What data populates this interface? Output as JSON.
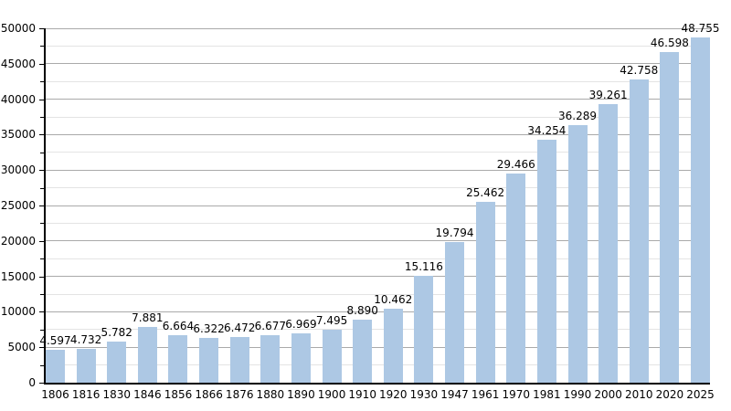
{
  "chart_data": {
    "type": "bar",
    "title": "",
    "xlabel": "",
    "ylabel": "",
    "categories": [
      "1806",
      "1816",
      "1830",
      "1846",
      "1856",
      "1866",
      "1876",
      "1880",
      "1890",
      "1900",
      "1910",
      "1920",
      "1930",
      "1947",
      "1961",
      "1970",
      "1981",
      "1990",
      "2000",
      "2010",
      "2020",
      "2025"
    ],
    "values": [
      4597,
      4732,
      5782,
      7881,
      6664,
      6322,
      6472,
      6677,
      6969,
      7495,
      8890,
      10462,
      15116,
      19794,
      25462,
      29466,
      34254,
      36289,
      39261,
      42758,
      46598,
      48755
    ],
    "bar_labels": [
      "4.597",
      "4.732",
      "5.782",
      "7.881",
      "6.664",
      "6.322",
      "6.472",
      "6.677",
      "6.969",
      "7.495",
      "8.890",
      "10.462",
      "15.116",
      "19.794",
      "25.462",
      "29.466",
      "34.254",
      "36.289",
      "39.261",
      "42.758",
      "46.598",
      "48.755"
    ],
    "ylim": [
      0,
      50000
    ],
    "y_major_step": 5000,
    "y_minor_step": 2500,
    "y_tick_labels": [
      "0",
      "5000",
      "10000",
      "15000",
      "20000",
      "25000",
      "30000",
      "35000",
      "40000",
      "45000",
      "50000"
    ],
    "grid": true,
    "legend_position": "none",
    "colors": {
      "bar_fill": "#adc8e4",
      "major_grid": "#aaaaaa",
      "minor_grid": "#e4e4e4",
      "axis": "#000000",
      "text": "#000000",
      "background": "#ffffff"
    }
  }
}
